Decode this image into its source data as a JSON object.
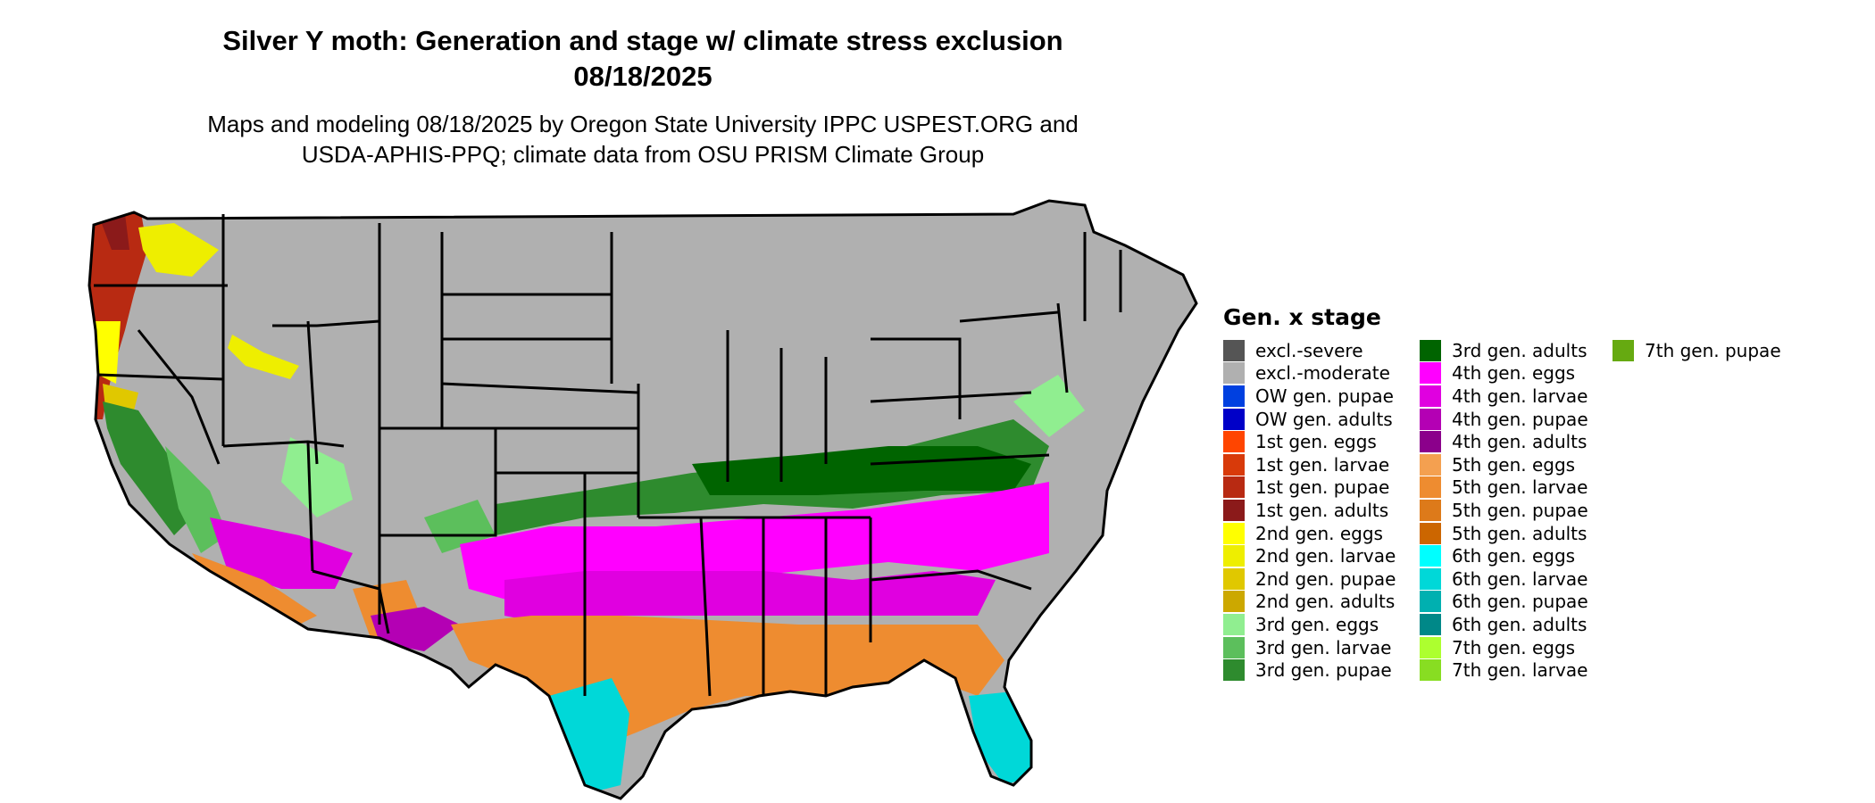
{
  "header": {
    "title_line1": "Silver Y moth: Generation and stage w/ climate stress exclusion",
    "title_line2": "08/18/2025",
    "subtitle_line1": "Maps and modeling 08/18/2025 by Oregon State University IPPC USPEST.ORG and",
    "subtitle_line2": "USDA-APHIS-PPQ; climate data from OSU PRISM Climate Group"
  },
  "legend": {
    "title": "Gen. x stage",
    "items": [
      {
        "label": "excl.-severe",
        "color": "#555555"
      },
      {
        "label": "excl.-moderate",
        "color": "#b0b0b0"
      },
      {
        "label": "OW gen. pupae",
        "color": "#0040e0"
      },
      {
        "label": "OW gen. adults",
        "color": "#0000c8"
      },
      {
        "label": "1st gen. eggs",
        "color": "#ff4500"
      },
      {
        "label": "1st gen. larvae",
        "color": "#d83a0a"
      },
      {
        "label": "1st gen. pupae",
        "color": "#b82a12"
      },
      {
        "label": "1st gen. adults",
        "color": "#8b1a1a"
      },
      {
        "label": "2nd gen. eggs",
        "color": "#ffff00"
      },
      {
        "label": "2nd gen. larvae",
        "color": "#eeee00"
      },
      {
        "label": "2nd gen. pupae",
        "color": "#e0c800"
      },
      {
        "label": "2nd gen. adults",
        "color": "#cca800"
      },
      {
        "label": "3rd gen. eggs",
        "color": "#90ee90"
      },
      {
        "label": "3rd gen. larvae",
        "color": "#5cbf5c"
      },
      {
        "label": "3rd gen. pupae",
        "color": "#2e8b2e"
      },
      {
        "label": "3rd gen. adults",
        "color": "#006400"
      },
      {
        "label": "4th gen. eggs",
        "color": "#ff00ff"
      },
      {
        "label": "4th gen. larvae",
        "color": "#e000e0"
      },
      {
        "label": "4th gen. pupae",
        "color": "#b400b4"
      },
      {
        "label": "4th gen. adults",
        "color": "#8b008b"
      },
      {
        "label": "5th gen. eggs",
        "color": "#f4a050"
      },
      {
        "label": "5th gen. larvae",
        "color": "#ee8c30"
      },
      {
        "label": "5th gen. pupae",
        "color": "#dd7a1a"
      },
      {
        "label": "5th gen. adults",
        "color": "#cc6600"
      },
      {
        "label": "6th gen. eggs",
        "color": "#00ffff"
      },
      {
        "label": "6th gen. larvae",
        "color": "#00d8d8"
      },
      {
        "label": "6th gen. pupae",
        "color": "#00b0b0"
      },
      {
        "label": "6th gen. adults",
        "color": "#008888"
      },
      {
        "label": "7th gen. eggs",
        "color": "#adff2f"
      },
      {
        "label": "7th gen. larvae",
        "color": "#88dd22"
      },
      {
        "label": "7th gen. pupae",
        "color": "#66aa11"
      }
    ]
  }
}
